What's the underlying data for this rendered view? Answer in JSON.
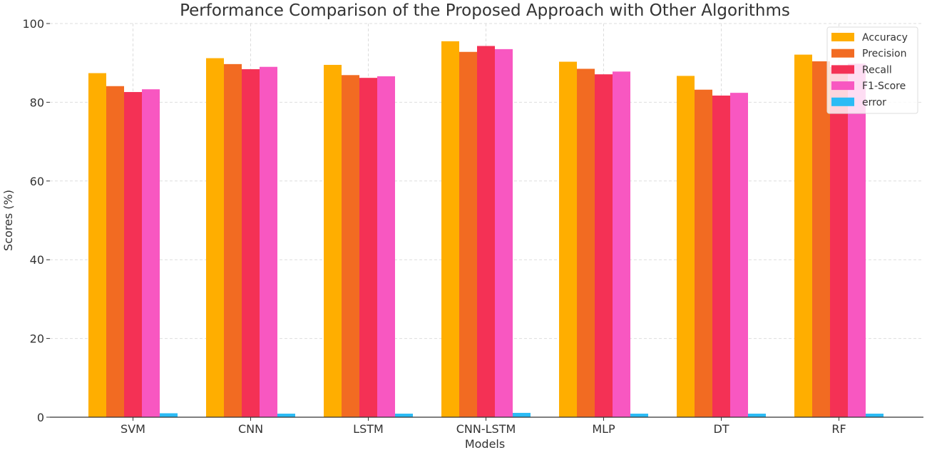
{
  "chart_data": {
    "type": "bar",
    "title": "Performance Comparison of the Proposed Approach with Other Algorithms",
    "xlabel": "Models",
    "ylabel": "Scores (%)",
    "ylim": [
      0,
      100
    ],
    "yticks": [
      0,
      20,
      40,
      60,
      80,
      100
    ],
    "grid": true,
    "legend_position": "top-right",
    "categories": [
      "SVM",
      "CNN",
      "LSTM",
      "CNN-LSTM",
      "MLP",
      "DT",
      "RF"
    ],
    "series": [
      {
        "name": "Accuracy",
        "color": "#FFAE00",
        "values": [
          87.4,
          91.2,
          89.5,
          95.5,
          90.3,
          86.7,
          92.1
        ]
      },
      {
        "name": "Precision",
        "color": "#F26B22",
        "values": [
          84.1,
          89.7,
          86.9,
          92.8,
          88.5,
          83.2,
          90.4
        ]
      },
      {
        "name": "Recall",
        "color": "#F43155",
        "values": [
          82.6,
          88.4,
          86.2,
          94.3,
          87.1,
          81.7,
          89.0
        ]
      },
      {
        "name": "F1-Score",
        "color": "#F857C1",
        "values": [
          83.3,
          89.0,
          86.6,
          93.5,
          87.8,
          82.4,
          89.8
        ]
      },
      {
        "name": " error",
        "color": "#2BBBF5",
        "values": [
          1.0,
          0.9,
          0.9,
          1.1,
          0.9,
          0.9,
          0.9
        ]
      }
    ]
  }
}
